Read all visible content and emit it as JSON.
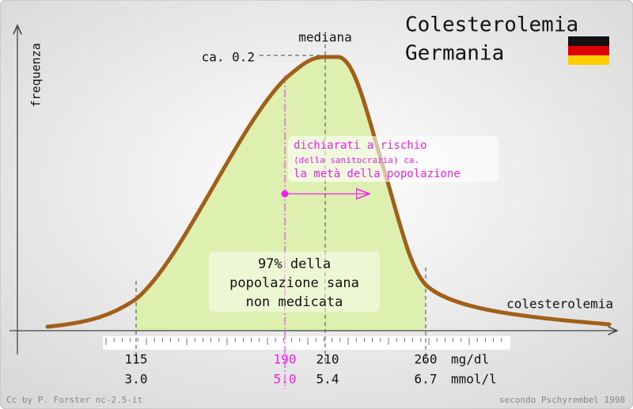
{
  "title": {
    "line1": "Colesterolemia",
    "line2": "Germania"
  },
  "axes": {
    "y_label": "frequenza",
    "x_label": "colesterolemia"
  },
  "curve": {
    "median_label": "mediana",
    "peak_label": "ca. 0.2"
  },
  "risk_note": {
    "lines": [
      "dichiarati a rischio",
      "(della sanitocrazia) ca.",
      "la metà della popolazione"
    ]
  },
  "healthy_note": {
    "lines": [
      "97% della",
      "popolazione sana",
      "non medicata"
    ]
  },
  "scale": {
    "mgdl": [
      "115",
      "190",
      "210",
      "260"
    ],
    "mgdl_unit": "mg/dl",
    "mmol": [
      "3.0",
      "5.0",
      "5.4",
      "6.7"
    ],
    "mmol_unit": "mmol/l"
  },
  "footer": {
    "left": "Cc by P. Forster nc-2.5-it",
    "right": "secondo Pschyrembel 1998"
  }
}
